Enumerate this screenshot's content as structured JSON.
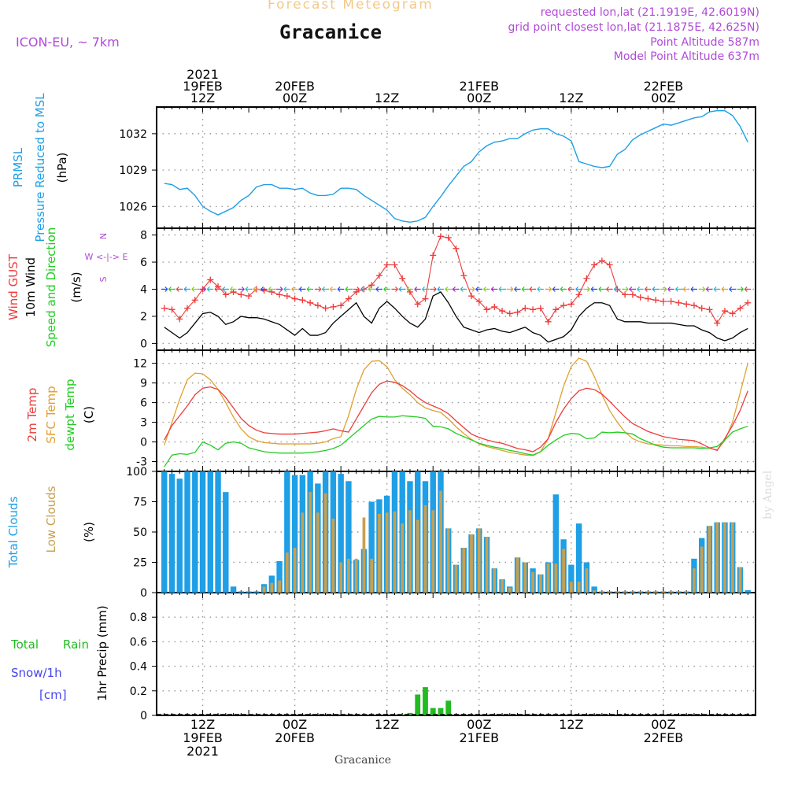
{
  "header": {
    "title": "Forecast Meteogram",
    "station": "Gracanice",
    "model": "ICON-EU, ~ 7km",
    "requested": "requested lon,lat (21.1919E, 42.6019N)",
    "grid_point": "grid point closest lon,lat (21.1875E, 42.625N)",
    "point_altitude": "Point Altitude 587m",
    "model_altitude": "Model Point Altitude 637m"
  },
  "watermark": "by Angel",
  "bottom_label": "Gracanice",
  "time_axis": {
    "top_labels": [
      {
        "t": 12,
        "lines": [
          "2021",
          "19FEB",
          "12Z"
        ]
      },
      {
        "t": 24,
        "lines": [
          "20FEB",
          "00Z"
        ]
      },
      {
        "t": 36,
        "lines": [
          "12Z"
        ]
      },
      {
        "t": 48,
        "lines": [
          "21FEB",
          "00Z"
        ]
      },
      {
        "t": 60,
        "lines": [
          "12Z"
        ]
      },
      {
        "t": 72,
        "lines": [
          "22FEB",
          "00Z"
        ]
      }
    ],
    "bottom_labels": [
      {
        "t": 12,
        "lines": [
          "12Z",
          "19FEB",
          "2021"
        ]
      },
      {
        "t": 24,
        "lines": [
          "00Z",
          "20FEB"
        ]
      },
      {
        "t": 36,
        "lines": [
          "12Z"
        ]
      },
      {
        "t": 48,
        "lines": [
          "00Z",
          "21FEB"
        ]
      },
      {
        "t": 60,
        "lines": [
          "12Z"
        ]
      },
      {
        "t": 72,
        "lines": [
          "00Z",
          "22FEB"
        ]
      }
    ]
  },
  "colors": {
    "pressure": "#1e9fe6",
    "gust": "#ee3b3b",
    "wind": "#000000",
    "temp": "#ee3b3b",
    "sfc": "#e0a030",
    "dewpt": "#22cc22",
    "total_clouds": "#1e9fe6",
    "low_clouds": "#c8a050",
    "rain": "#22bb22",
    "snow": "#4444ee",
    "purple": "#b04ad8"
  },
  "chart_data": [
    {
      "type": "line",
      "panel": "pressure",
      "ylabels": [
        "PRMSL",
        "Pressure Reduced to MSL",
        "(hPa)"
      ],
      "ylim": [
        1024.2,
        1034.2
      ],
      "yticks": [
        1026,
        1029,
        1032
      ],
      "x_hours": [
        7,
        8,
        9,
        10,
        11,
        12,
        13,
        14,
        15,
        16,
        17,
        18,
        19,
        20,
        21,
        22,
        23,
        24,
        25,
        26,
        27,
        28,
        29,
        30,
        31,
        32,
        33,
        34,
        35,
        36,
        37,
        38,
        39,
        40,
        41,
        42,
        43,
        44,
        45,
        46,
        47,
        48,
        49,
        50,
        51,
        52,
        53,
        54,
        55,
        56,
        57,
        58,
        59,
        60,
        61,
        62,
        63,
        64,
        65,
        66,
        67,
        68,
        69,
        70,
        71,
        72,
        73,
        74,
        75,
        76,
        77,
        78,
        79,
        80,
        81,
        82,
        83
      ],
      "series": [
        {
          "values": [
            1027.9,
            1027.8,
            1027.4,
            1027.5,
            1026.9,
            1026.0,
            1025.6,
            1025.3,
            1025.6,
            1025.9,
            1026.5,
            1026.9,
            1027.6,
            1027.8,
            1027.8,
            1027.5,
            1027.5,
            1027.4,
            1027.5,
            1027.1,
            1026.9,
            1026.9,
            1027.0,
            1027.5,
            1027.5,
            1027.4,
            1026.9,
            1026.5,
            1026.1,
            1025.7,
            1025.0,
            1024.8,
            1024.7,
            1024.8,
            1025.1,
            1026.0,
            1026.8,
            1027.7,
            1028.5,
            1029.3,
            1029.7,
            1030.5,
            1031.0,
            1031.3,
            1031.4,
            1031.6,
            1031.6,
            1032.0,
            1032.3,
            1032.4,
            1032.4,
            1032.0,
            1031.8,
            1031.4,
            1029.7,
            1029.5,
            1029.3,
            1029.2,
            1029.3,
            1030.3,
            1030.7,
            1031.5,
            1031.9,
            1032.2,
            1032.5,
            1032.8,
            1032.7,
            1032.9,
            1033.1,
            1033.3,
            1033.4,
            1033.8,
            1033.9,
            1033.9,
            1033.5,
            1032.6,
            1031.3
          ]
        }
      ]
    },
    {
      "type": "line",
      "panel": "wind",
      "ylabels": [
        "Wind GUST",
        "10m Wind",
        "Speed and Direction",
        "(m/s)"
      ],
      "compass": [
        "N",
        "W <-|-> E",
        "S"
      ],
      "ylim": [
        -0.5,
        8.5
      ],
      "yticks": [
        0,
        2,
        4,
        6,
        8
      ],
      "x_hours": [
        7,
        8,
        9,
        10,
        11,
        12,
        13,
        14,
        15,
        16,
        17,
        18,
        19,
        20,
        21,
        22,
        23,
        24,
        25,
        26,
        27,
        28,
        29,
        30,
        31,
        32,
        33,
        34,
        35,
        36,
        37,
        38,
        39,
        40,
        41,
        42,
        43,
        44,
        45,
        46,
        47,
        48,
        49,
        50,
        51,
        52,
        53,
        54,
        55,
        56,
        57,
        58,
        59,
        60,
        61,
        62,
        63,
        64,
        65,
        66,
        67,
        68,
        69,
        70,
        71,
        72,
        73,
        74,
        75,
        76,
        77,
        78,
        79,
        80,
        81,
        82,
        83
      ],
      "series": [
        {
          "name": "Wind GUST",
          "values": [
            2.6,
            2.5,
            1.8,
            2.6,
            3.2,
            4.0,
            4.7,
            4.2,
            3.6,
            3.8,
            3.6,
            3.5,
            4.0,
            3.9,
            3.8,
            3.6,
            3.5,
            3.3,
            3.2,
            3.0,
            2.8,
            2.6,
            2.7,
            2.8,
            3.3,
            3.8,
            4.0,
            4.3,
            5.0,
            5.8,
            5.8,
            4.8,
            3.8,
            2.9,
            3.3,
            6.5,
            7.9,
            7.8,
            7.0,
            5.0,
            3.5,
            3.1,
            2.5,
            2.7,
            2.4,
            2.2,
            2.3,
            2.6,
            2.5,
            2.6,
            1.6,
            2.5,
            2.8,
            2.9,
            3.6,
            4.8,
            5.8,
            6.1,
            5.8,
            4.0,
            3.6,
            3.6,
            3.4,
            3.3,
            3.2,
            3.1,
            3.1,
            3.0,
            2.9,
            2.8,
            2.6,
            2.5,
            1.5,
            2.4,
            2.2,
            2.6,
            3.0
          ]
        },
        {
          "name": "10m Wind",
          "values": [
            1.2,
            0.8,
            0.4,
            0.8,
            1.5,
            2.2,
            2.3,
            2.0,
            1.4,
            1.6,
            2.0,
            1.9,
            1.9,
            1.8,
            1.6,
            1.4,
            1.0,
            0.6,
            1.1,
            0.6,
            0.6,
            0.8,
            1.5,
            2.0,
            2.5,
            3.0,
            2.0,
            1.5,
            2.6,
            3.1,
            2.6,
            2.0,
            1.5,
            1.2,
            1.8,
            3.5,
            3.8,
            3.0,
            2.0,
            1.2,
            1.0,
            0.8,
            1.0,
            1.1,
            0.9,
            0.8,
            1.0,
            1.2,
            0.8,
            0.6,
            0.1,
            0.3,
            0.5,
            1.0,
            2.0,
            2.6,
            3.0,
            3.0,
            2.8,
            1.8,
            1.6,
            1.6,
            1.6,
            1.5,
            1.5,
            1.5,
            1.5,
            1.4,
            1.3,
            1.3,
            1.0,
            0.8,
            0.4,
            0.2,
            0.4,
            0.8,
            1.1
          ]
        }
      ]
    },
    {
      "type": "line",
      "panel": "temperature",
      "ylabels": [
        "2m Temp",
        "SFC Temp",
        "dewpt Temp",
        "(C)"
      ],
      "ylim": [
        -4.5,
        14
      ],
      "yticks": [
        -3,
        0,
        3,
        6,
        9,
        12
      ],
      "x_hours": [
        7,
        8,
        9,
        10,
        11,
        12,
        13,
        14,
        15,
        16,
        17,
        18,
        19,
        20,
        21,
        22,
        23,
        24,
        25,
        26,
        27,
        28,
        29,
        30,
        31,
        32,
        33,
        34,
        35,
        36,
        37,
        38,
        39,
        40,
        41,
        42,
        43,
        44,
        45,
        46,
        47,
        48,
        49,
        50,
        51,
        52,
        53,
        54,
        55,
        56,
        57,
        58,
        59,
        60,
        61,
        62,
        63,
        64,
        65,
        66,
        67,
        68,
        69,
        70,
        71,
        72,
        73,
        74,
        75,
        76,
        77,
        78,
        79,
        80,
        81,
        82,
        83
      ],
      "series": [
        {
          "name": "2m Temp",
          "values": [
            0.3,
            2.5,
            4.0,
            5.5,
            7.2,
            8.2,
            8.4,
            8.0,
            6.8,
            5.2,
            3.6,
            2.5,
            1.8,
            1.4,
            1.3,
            1.2,
            1.2,
            1.2,
            1.3,
            1.4,
            1.5,
            1.7,
            2.0,
            1.7,
            1.5,
            3.5,
            5.5,
            7.5,
            8.8,
            9.3,
            9.1,
            8.6,
            7.8,
            6.8,
            6.0,
            5.5,
            5.0,
            4.3,
            3.2,
            2.2,
            1.2,
            0.7,
            0.3,
            0.0,
            -0.2,
            -0.6,
            -1.0,
            -1.2,
            -1.5,
            -0.8,
            0.5,
            3.0,
            5.0,
            6.6,
            7.8,
            8.2,
            8.0,
            7.3,
            6.2,
            5.0,
            3.8,
            2.8,
            2.2,
            1.6,
            1.2,
            0.8,
            0.6,
            0.4,
            0.3,
            0.2,
            -0.3,
            -0.9,
            -1.3,
            0.5,
            2.5,
            4.8,
            7.8
          ]
        },
        {
          "name": "SFC Temp",
          "values": [
            -0.5,
            3.0,
            6.5,
            9.5,
            10.5,
            10.4,
            9.5,
            8.0,
            6.0,
            3.8,
            2.0,
            0.8,
            0.2,
            -0.1,
            -0.2,
            -0.3,
            -0.3,
            -0.3,
            -0.3,
            -0.3,
            -0.2,
            0.0,
            0.5,
            0.8,
            4.0,
            8.0,
            11.0,
            12.3,
            12.4,
            11.5,
            9.5,
            8.2,
            7.2,
            6.0,
            5.2,
            4.8,
            4.5,
            3.5,
            2.3,
            1.3,
            0.4,
            -0.3,
            -0.7,
            -1.0,
            -1.3,
            -1.6,
            -1.8,
            -2.0,
            -2.1,
            -1.5,
            0.5,
            4.5,
            8.5,
            11.5,
            12.8,
            12.3,
            10.0,
            7.2,
            4.8,
            3.0,
            1.5,
            0.5,
            0.0,
            -0.3,
            -0.4,
            -0.5,
            -0.6,
            -0.6,
            -0.7,
            -0.7,
            -0.8,
            -1.0,
            -1.2,
            0.2,
            3.0,
            7.5,
            12.0
          ]
        },
        {
          "name": "dewpt Temp",
          "values": [
            -3.8,
            -2.0,
            -1.8,
            -1.9,
            -1.6,
            0.0,
            -0.5,
            -1.2,
            -0.2,
            0.0,
            -0.2,
            -0.9,
            -1.2,
            -1.5,
            -1.6,
            -1.7,
            -1.7,
            -1.7,
            -1.7,
            -1.6,
            -1.5,
            -1.3,
            -1.0,
            -0.5,
            0.5,
            1.5,
            2.5,
            3.5,
            3.9,
            3.8,
            3.8,
            4.0,
            3.9,
            3.8,
            3.6,
            2.4,
            2.3,
            2.0,
            1.3,
            0.8,
            0.3,
            -0.2,
            -0.5,
            -0.8,
            -1.0,
            -1.3,
            -1.5,
            -1.8,
            -2.0,
            -1.5,
            -0.5,
            0.3,
            1.0,
            1.3,
            1.2,
            0.5,
            0.6,
            1.5,
            1.4,
            1.5,
            1.4,
            1.2,
            0.5,
            0.0,
            -0.5,
            -0.8,
            -0.9,
            -0.9,
            -0.9,
            -0.9,
            -1.0,
            -0.9,
            -0.7,
            0.3,
            1.5,
            2.0,
            2.4
          ]
        }
      ]
    },
    {
      "type": "bar",
      "panel": "clouds",
      "ylabels": [
        "Total Clouds",
        "Low Clouds",
        "(%)"
      ],
      "ylim": [
        0,
        100
      ],
      "yticks": [
        0,
        25,
        50,
        75,
        100
      ],
      "x_hours": [
        7,
        8,
        9,
        10,
        11,
        12,
        13,
        14,
        15,
        16,
        17,
        18,
        19,
        20,
        21,
        22,
        23,
        24,
        25,
        26,
        27,
        28,
        29,
        30,
        31,
        32,
        33,
        34,
        35,
        36,
        37,
        38,
        39,
        40,
        41,
        42,
        43,
        44,
        45,
        46,
        47,
        48,
        49,
        50,
        51,
        52,
        53,
        54,
        55,
        56,
        57,
        58,
        59,
        60,
        61,
        62,
        63,
        64,
        65,
        66,
        67,
        68,
        69,
        70,
        71,
        72,
        73,
        74,
        75,
        76,
        77,
        78,
        79,
        80,
        81,
        82,
        83
      ],
      "series": [
        {
          "name": "Total Clouds",
          "values": [
            100,
            98,
            94,
            100,
            100,
            100,
            100,
            100,
            83,
            5,
            1,
            1,
            1,
            7,
            14,
            26,
            100,
            97,
            97,
            100,
            90,
            100,
            100,
            98,
            92,
            27,
            36,
            75,
            77,
            80,
            100,
            100,
            92,
            100,
            92,
            100,
            100,
            53,
            23,
            37,
            48,
            53,
            46,
            20,
            11,
            5,
            29,
            25,
            20,
            15,
            25,
            81,
            44,
            23,
            57,
            25,
            5,
            1,
            1,
            1,
            1,
            1,
            1,
            1,
            1,
            1,
            1,
            1,
            1,
            28,
            45,
            55,
            58,
            58,
            58,
            21,
            2
          ]
        },
        {
          "name": "Low Clouds",
          "values": [
            0,
            0,
            0,
            0,
            0,
            0,
            0,
            0,
            0,
            0,
            0,
            0,
            0,
            5,
            8,
            10,
            33,
            37,
            66,
            83,
            66,
            82,
            61,
            25,
            28,
            28,
            62,
            28,
            65,
            66,
            67,
            57,
            68,
            60,
            72,
            68,
            84,
            53,
            23,
            37,
            48,
            53,
            46,
            20,
            11,
            4,
            29,
            25,
            17,
            15,
            24,
            24,
            36,
            9,
            9,
            20,
            2,
            1,
            1,
            1,
            1,
            1,
            1,
            1,
            1,
            1,
            1,
            1,
            1,
            20,
            38,
            55,
            58,
            58,
            58,
            21,
            0
          ]
        }
      ]
    },
    {
      "type": "bar",
      "panel": "precipitation",
      "ylabels": [
        "Total",
        "Rain",
        "Snow/1h",
        "[cm]",
        "1hr Precip (mm)"
      ],
      "ylim": [
        0,
        1.0
      ],
      "yticks": [
        0,
        0.2,
        0.4,
        0.6,
        0.8
      ],
      "x_hours": [
        38,
        39,
        40,
        41,
        42,
        43,
        44
      ],
      "series": [
        {
          "name": "Rain",
          "values": [
            0.005,
            0.02,
            0.17,
            0.23,
            0.06,
            0.06,
            0.12
          ]
        }
      ]
    }
  ]
}
